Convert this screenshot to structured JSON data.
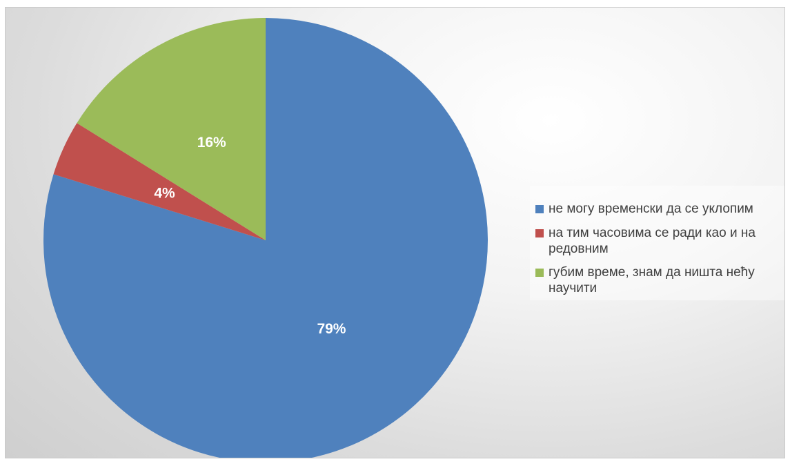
{
  "chart_data": {
    "type": "pie",
    "categories": [
      "не могу временски да се уклопим",
      "на тим часовима се ради као и на редовним",
      "губим време, знам да ништа нећу научити"
    ],
    "values": [
      79,
      4,
      16
    ],
    "data_labels": [
      "79%",
      "4%",
      "16%"
    ],
    "colors": [
      "#4F81BD",
      "#C0504D",
      "#9BBB59"
    ],
    "legend_position": "right"
  }
}
